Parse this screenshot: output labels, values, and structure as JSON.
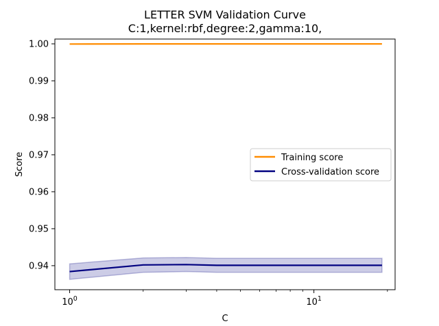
{
  "chart_data": {
    "type": "line",
    "title": "LETTER SVM Validation Curve",
    "subtitle": "C:1,kernel:rbf,degree:2,gamma:10,",
    "xlabel": "C",
    "ylabel": "Score",
    "xscale": "log",
    "xlim": [
      0.87,
      21.5
    ],
    "ylim": [
      0.9335,
      1.0013
    ],
    "x_ticks": [
      {
        "value": 1,
        "base": "10",
        "exp": "0"
      },
      {
        "value": 10,
        "base": "10",
        "exp": "1"
      }
    ],
    "x_minor_ticks": [
      2,
      3,
      4,
      5,
      6,
      7,
      8,
      9,
      20
    ],
    "y_ticks": [
      "0.94",
      "0.95",
      "0.96",
      "0.97",
      "0.98",
      "0.99",
      "1.00"
    ],
    "grid": false,
    "legend_position": "center-right",
    "x": [
      1,
      2,
      3,
      4,
      5,
      6,
      7,
      8,
      9,
      10,
      11,
      12,
      13,
      14,
      15,
      16,
      17,
      18,
      19
    ],
    "series": [
      {
        "name": "Training score",
        "color": "#ff8c00",
        "values": [
          0.99995,
          0.99998,
          0.99998,
          0.99998,
          0.99998,
          0.99998,
          0.99998,
          0.99998,
          0.99998,
          0.99998,
          0.99998,
          0.99998,
          0.99998,
          0.99998,
          0.99998,
          0.99998,
          0.99998,
          0.99998,
          0.99998
        ]
      },
      {
        "name": "Cross-validation score",
        "color": "#000080",
        "band_color": "#000080",
        "values": [
          0.9384,
          0.9402,
          0.9403,
          0.9401,
          0.9401,
          0.9401,
          0.9401,
          0.9401,
          0.9401,
          0.9401,
          0.9401,
          0.9401,
          0.9401,
          0.9401,
          0.9401,
          0.9401,
          0.9401,
          0.9401,
          0.9401
        ],
        "lower": [
          0.9363,
          0.9382,
          0.9384,
          0.9382,
          0.9382,
          0.9382,
          0.9382,
          0.9382,
          0.9382,
          0.9382,
          0.9382,
          0.9382,
          0.9382,
          0.9382,
          0.9382,
          0.9382,
          0.9382,
          0.9382,
          0.9382
        ],
        "upper": [
          0.9405,
          0.9421,
          0.9422,
          0.942,
          0.942,
          0.942,
          0.942,
          0.942,
          0.942,
          0.942,
          0.942,
          0.942,
          0.942,
          0.942,
          0.942,
          0.942,
          0.942,
          0.942,
          0.942
        ]
      }
    ]
  }
}
